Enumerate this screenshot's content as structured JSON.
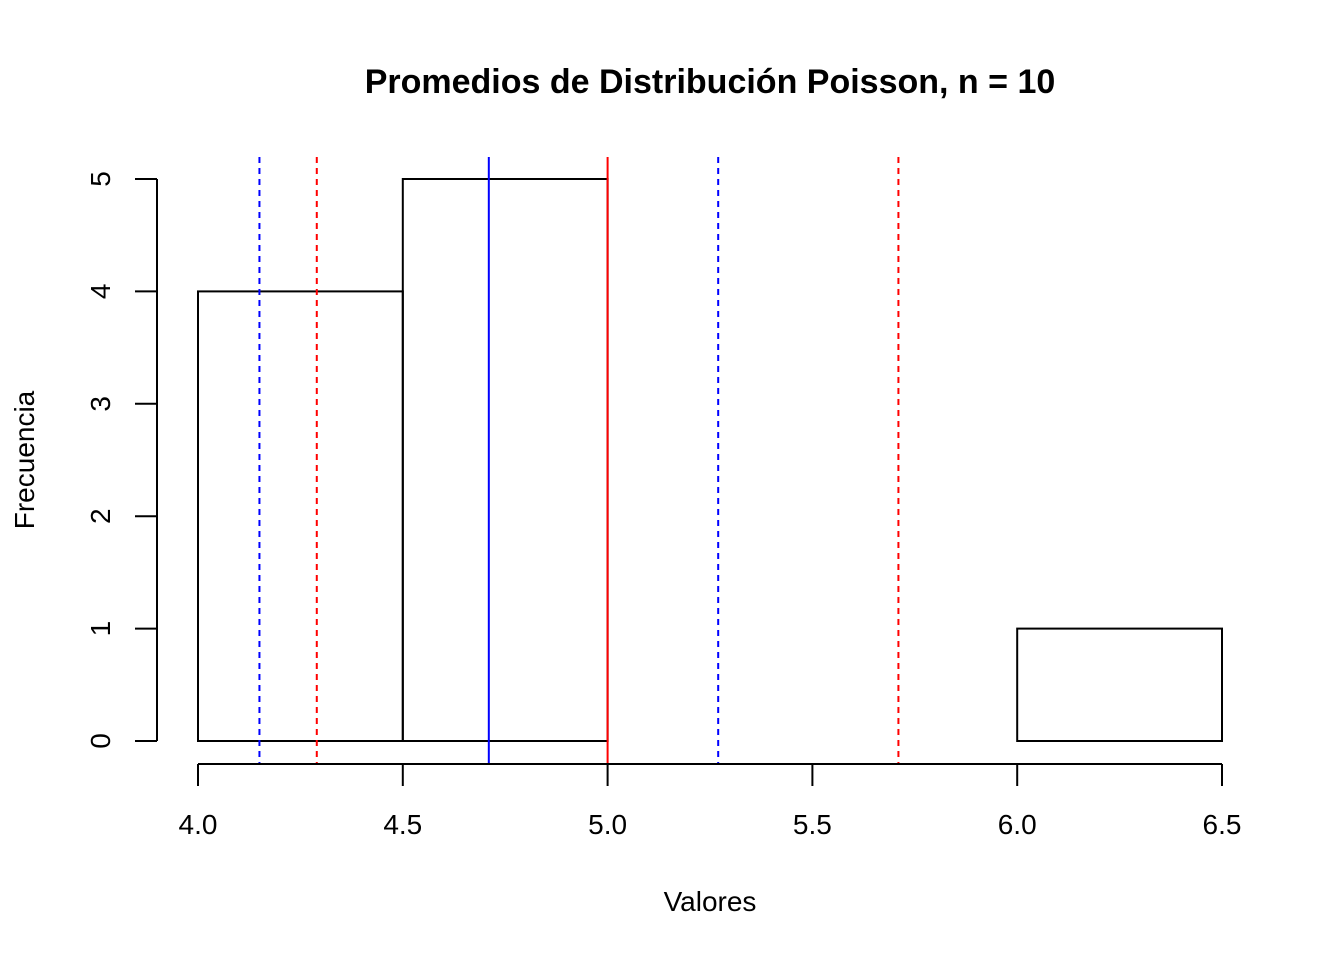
{
  "chart_data": {
    "type": "bar",
    "title": "Promedios de Distribución Poisson, n = 10",
    "xlabel": "Valores",
    "ylabel": "Frecuencia",
    "xlim": [
      4.0,
      6.5
    ],
    "ylim": [
      0,
      5
    ],
    "x_ticks": [
      "4.0",
      "4.5",
      "5.0",
      "5.5",
      "6.0",
      "6.5"
    ],
    "y_ticks": [
      "0",
      "1",
      "2",
      "3",
      "4",
      "5"
    ],
    "bins": [
      {
        "start": 4.0,
        "end": 4.5,
        "count": 4
      },
      {
        "start": 4.5,
        "end": 5.0,
        "count": 5
      },
      {
        "start": 5.0,
        "end": 5.5,
        "count": 0
      },
      {
        "start": 5.5,
        "end": 6.0,
        "count": 0
      },
      {
        "start": 6.0,
        "end": 6.5,
        "count": 1
      }
    ],
    "vlines": [
      {
        "x": 4.15,
        "color": "#0000ff",
        "style": "dashed"
      },
      {
        "x": 4.29,
        "color": "#ff0000",
        "style": "dashed"
      },
      {
        "x": 4.71,
        "color": "#0000ff",
        "style": "solid"
      },
      {
        "x": 5.0,
        "color": "#ff0000",
        "style": "solid"
      },
      {
        "x": 5.27,
        "color": "#0000ff",
        "style": "dashed"
      },
      {
        "x": 5.71,
        "color": "#ff0000",
        "style": "dashed"
      }
    ],
    "grid": false
  }
}
